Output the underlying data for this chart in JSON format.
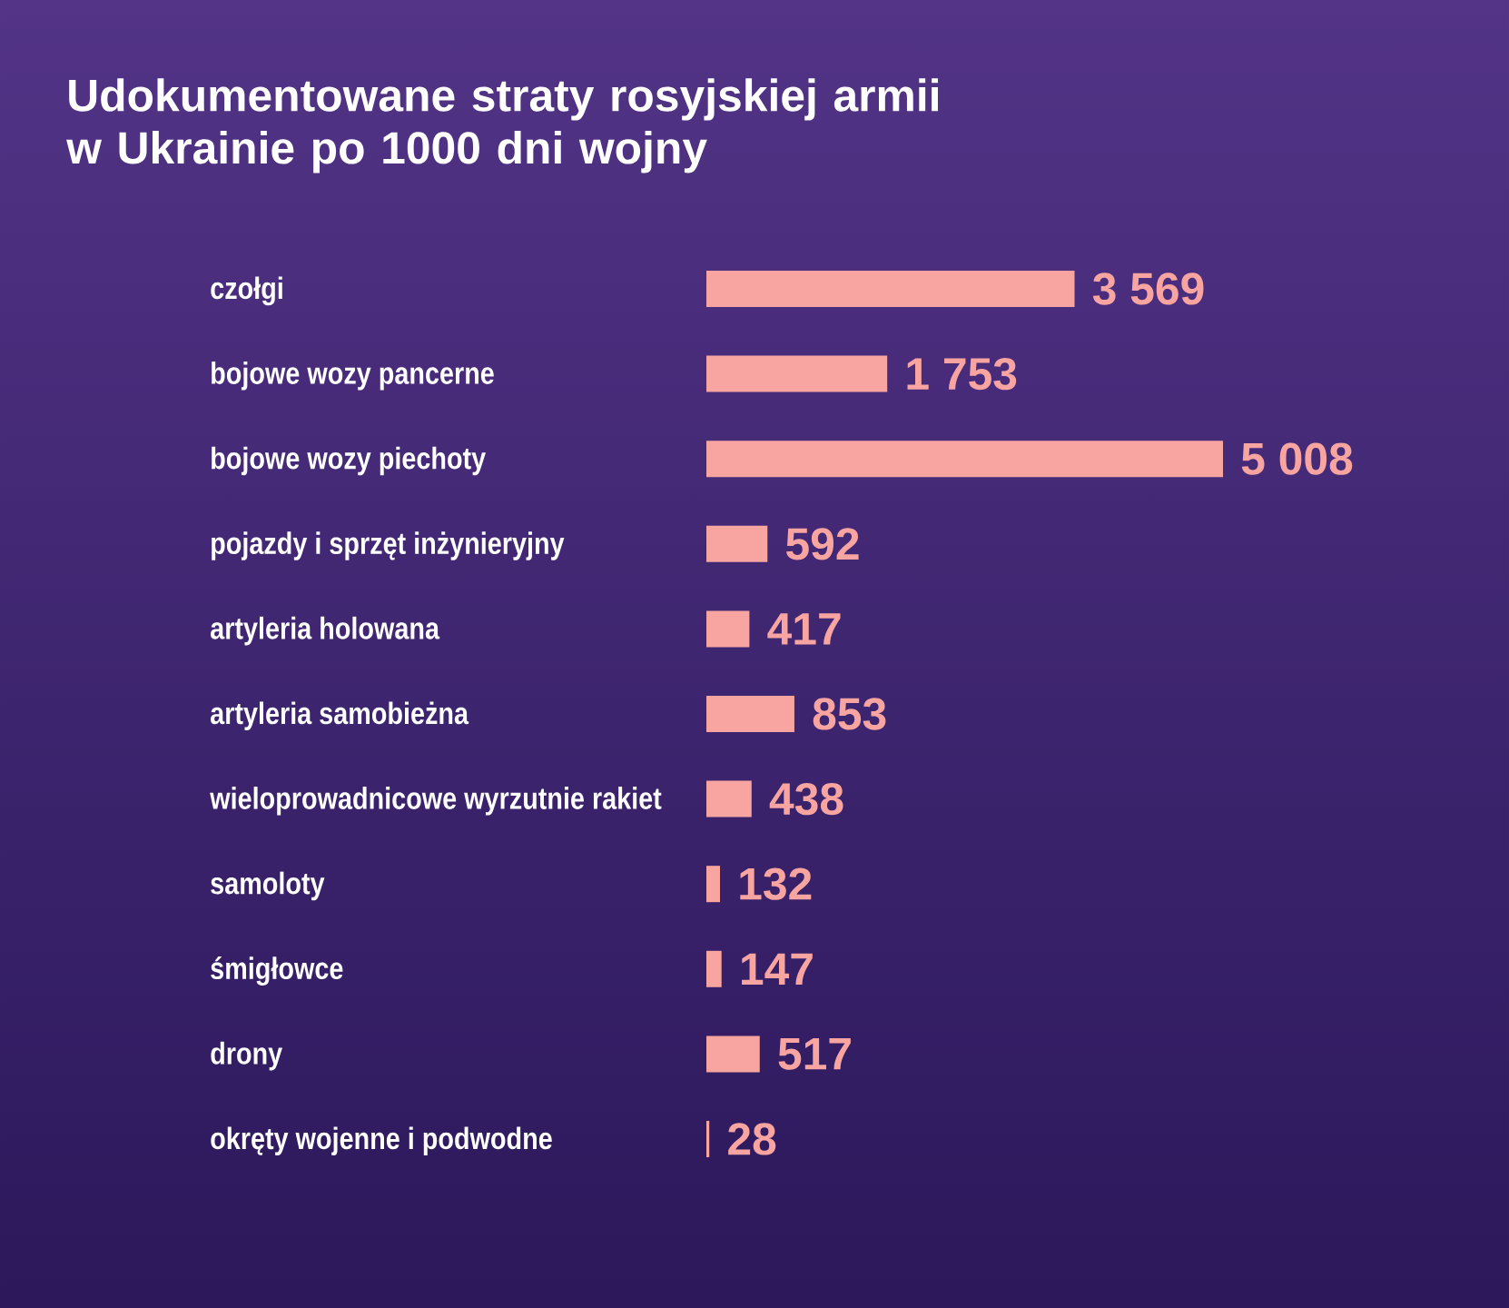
{
  "chart_data": {
    "type": "bar",
    "orientation": "horizontal",
    "title": "Udokumentowane straty rosyjskiej armii w Ukrainie po 1000 dni wojny",
    "categories": [
      "czołgi",
      "bojowe wozy pancerne",
      "bojowe wozy piechoty",
      "pojazdy i sprzęt inżynieryjny",
      "artyleria holowana",
      "artyleria samobieżna",
      "wieloprowadnicowe wyrzutnie rakiet",
      "samoloty",
      "śmigłowce",
      "drony",
      "okręty wojenne i podwodne"
    ],
    "values": [
      3569,
      1753,
      5008,
      592,
      417,
      853,
      438,
      132,
      147,
      517,
      28
    ],
    "value_labels": [
      "3 569",
      "1 753",
      "5 008",
      "592",
      "417",
      "853",
      "438",
      "132",
      "147",
      "517",
      "28"
    ],
    "color": "#f8a5a2"
  }
}
